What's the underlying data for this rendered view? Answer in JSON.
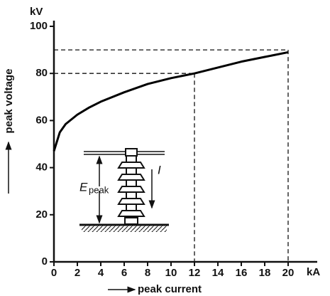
{
  "chart_data": {
    "type": "line",
    "x": [
      0,
      0.5,
      1,
      2,
      3,
      4,
      6,
      8,
      10,
      12,
      14,
      16,
      18,
      20
    ],
    "values": [
      47,
      55,
      58.5,
      62.5,
      65.5,
      68,
      72,
      75.5,
      78,
      80,
      82.5,
      85,
      87,
      89
    ],
    "color": "#000000",
    "xlim": [
      0,
      22
    ],
    "ylim": [
      0,
      100
    ],
    "xticks": [
      0,
      2,
      4,
      6,
      8,
      10,
      12,
      14,
      16,
      18,
      20
    ],
    "yticks": [
      0,
      20,
      40,
      60,
      80,
      100
    ],
    "x_unit": "kA",
    "y_unit": "kV",
    "xlabel": "peak current",
    "ylabel": "peak voltage",
    "reference_points": [
      {
        "x": 12,
        "y": 80
      },
      {
        "x": 20,
        "y": 90
      }
    ],
    "inset": {
      "voltage_label": "E",
      "voltage_subscript": "peak",
      "current_label": "I"
    }
  }
}
